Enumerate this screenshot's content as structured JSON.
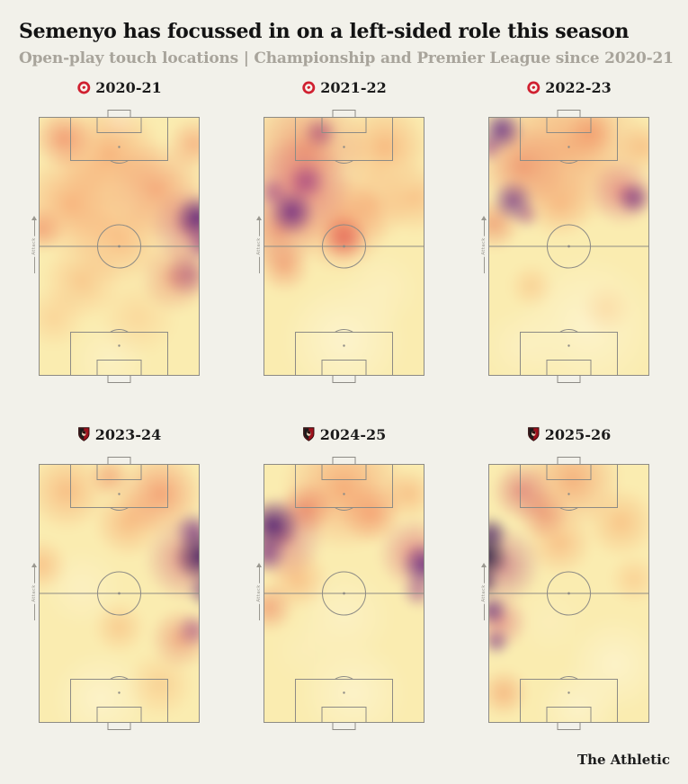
{
  "header": {
    "title": "Semenyo has focussed in on a left-sided role this season",
    "subtitle": "Open-play touch locations | Championship and Premier League since 2020-21"
  },
  "footer": {
    "brand": "The Athletic"
  },
  "pitch": {
    "attack_label": "Attack"
  },
  "colors": {
    "background": "#f2f1ea",
    "pitch_line": "#8d8b85",
    "title": "#131313",
    "subtitle": "#a8a49b",
    "heat_low": "#fdf5d3",
    "heat_mid": "#f08355",
    "heat_high": "#16093f",
    "bristol_city_red": "#d02030",
    "bournemouth_red": "#9e111c"
  },
  "icons": {
    "bristol_city_badge": "red circle crest with white robin",
    "afc_bournemouth_badge": "red and black shield crest with head profile"
  },
  "chart_data": {
    "type": "heatmap",
    "title": "Semenyo has focussed in on a left-sided role this season",
    "subtitle": "Open-play touch locations | Championship and Premier League since 2020-21",
    "player": "Semenyo",
    "orientation": "vertical pitch per panel, attacking direction up (arrow labelled Attack on left touchline)",
    "colormap": "reversed magma: pale yellow = few touches, orange/red = more, dark purple/black = most",
    "legend": "none shown",
    "grid": "2 rows x 3 columns of pitches",
    "panels": [
      {
        "season": "2020-21",
        "club": "Bristol City",
        "badge": "bristol-city",
        "peak_zones": [
          "right wing just above halfway line",
          "right half-space below halfway"
        ],
        "base": "#faecb0",
        "blobs": [
          {
            "x": 92,
            "y": 40,
            "r": 26,
            "c": "#4c1277",
            "a": 0.85
          },
          {
            "x": 95,
            "y": 49,
            "r": 20,
            "c": "#7c2382",
            "a": 0.6
          },
          {
            "x": 88,
            "y": 43,
            "r": 45,
            "c": "#c23b62",
            "a": 0.55
          },
          {
            "x": 87,
            "y": 60,
            "r": 26,
            "c": "#993073",
            "a": 0.5
          },
          {
            "x": 80,
            "y": 61,
            "r": 40,
            "c": "#df5a4e",
            "a": 0.45
          },
          {
            "x": 70,
            "y": 30,
            "r": 55,
            "c": "#ef7450",
            "a": 0.55
          },
          {
            "x": 20,
            "y": 12,
            "r": 34,
            "c": "#ed6d4f",
            "a": 0.6
          },
          {
            "x": 45,
            "y": 18,
            "r": 60,
            "c": "#f58f5b",
            "a": 0.6
          },
          {
            "x": 25,
            "y": 35,
            "r": 60,
            "c": "#f68f5c",
            "a": 0.6
          },
          {
            "x": 8,
            "y": 44,
            "r": 26,
            "c": "#ea6a4e",
            "a": 0.5
          },
          {
            "x": 50,
            "y": 47,
            "r": 55,
            "c": "#f79a63",
            "a": 0.55
          },
          {
            "x": 90,
            "y": 14,
            "r": 30,
            "c": "#f2815a",
            "a": 0.5
          },
          {
            "x": 30,
            "y": 62,
            "r": 45,
            "c": "#f8a76c",
            "a": 0.5
          },
          {
            "x": 60,
            "y": 75,
            "r": 45,
            "c": "#f9c285",
            "a": 0.45
          },
          {
            "x": 15,
            "y": 75,
            "r": 35,
            "c": "#f9b97c",
            "a": 0.45
          },
          {
            "x": 50,
            "y": 6,
            "r": 22,
            "c": "#fdf4d0",
            "a": 0.8
          },
          {
            "x": 45,
            "y": 90,
            "r": 45,
            "c": "#fcf2c8",
            "a": 0.7
          }
        ]
      },
      {
        "season": "2021-22",
        "club": "Bristol City",
        "badge": "bristol-city",
        "peak_zones": [
          "left half-space above halfway",
          "left side of final third",
          "centre circle"
        ],
        "base": "#faecb0",
        "blobs": [
          {
            "x": 22,
            "y": 38,
            "r": 26,
            "c": "#5c167f",
            "a": 0.8
          },
          {
            "x": 30,
            "y": 27,
            "r": 22,
            "c": "#8c2981",
            "a": 0.6
          },
          {
            "x": 37,
            "y": 10,
            "r": 20,
            "c": "#993073",
            "a": 0.6
          },
          {
            "x": 12,
            "y": 31,
            "r": 18,
            "c": "#8c2981",
            "a": 0.5
          },
          {
            "x": 25,
            "y": 30,
            "r": 60,
            "c": "#cd4066",
            "a": 0.5
          },
          {
            "x": 30,
            "y": 16,
            "r": 70,
            "c": "#e4604b",
            "a": 0.55
          },
          {
            "x": 15,
            "y": 45,
            "r": 45,
            "c": "#e05a4a",
            "a": 0.5
          },
          {
            "x": 50,
            "y": 47,
            "r": 26,
            "c": "#df4b46",
            "a": 0.7
          },
          {
            "x": 48,
            "y": 42,
            "r": 55,
            "c": "#f07b53",
            "a": 0.55
          },
          {
            "x": 72,
            "y": 15,
            "r": 50,
            "c": "#f69a62",
            "a": 0.6
          },
          {
            "x": 88,
            "y": 33,
            "r": 40,
            "c": "#f79d64",
            "a": 0.5
          },
          {
            "x": 18,
            "y": 57,
            "r": 30,
            "c": "#ec7150",
            "a": 0.5
          },
          {
            "x": 65,
            "y": 35,
            "r": 45,
            "c": "#f5935e",
            "a": 0.45
          },
          {
            "x": 50,
            "y": 83,
            "r": 70,
            "c": "#fdf5d3",
            "a": 0.8
          },
          {
            "x": 70,
            "y": 65,
            "r": 45,
            "c": "#fcf1c6",
            "a": 0.6
          }
        ]
      },
      {
        "season": "2022-23",
        "club": "Bristol City",
        "badge": "bristol-city",
        "peak_zones": [
          "top-left corner of final third",
          "left wing above halfway",
          "right wing above halfway"
        ],
        "base": "#faecb0",
        "blobs": [
          {
            "x": 14,
            "y": 9,
            "r": 24,
            "c": "#531480",
            "a": 0.8
          },
          {
            "x": 7,
            "y": 15,
            "r": 18,
            "c": "#8c2981",
            "a": 0.55
          },
          {
            "x": 20,
            "y": 34,
            "r": 24,
            "c": "#5c167f",
            "a": 0.7
          },
          {
            "x": 27,
            "y": 39,
            "r": 16,
            "c": "#993073",
            "a": 0.5
          },
          {
            "x": 85,
            "y": 33,
            "r": 20,
            "c": "#6b1f7c",
            "a": 0.7
          },
          {
            "x": 79,
            "y": 31,
            "r": 38,
            "c": "#cd4066",
            "a": 0.5
          },
          {
            "x": 50,
            "y": 15,
            "r": 90,
            "c": "#f08355",
            "a": 0.55
          },
          {
            "x": 25,
            "y": 22,
            "r": 50,
            "c": "#e4604b",
            "a": 0.5
          },
          {
            "x": 10,
            "y": 42,
            "r": 30,
            "c": "#e66549",
            "a": 0.5
          },
          {
            "x": 62,
            "y": 10,
            "r": 28,
            "c": "#ee7752",
            "a": 0.5
          },
          {
            "x": 45,
            "y": 35,
            "r": 40,
            "c": "#f5935e",
            "a": 0.45
          },
          {
            "x": 90,
            "y": 15,
            "r": 30,
            "c": "#f7a267",
            "a": 0.5
          },
          {
            "x": 30,
            "y": 64,
            "r": 26,
            "c": "#f8b274",
            "a": 0.45
          },
          {
            "x": 70,
            "y": 72,
            "r": 30,
            "c": "#f9c285",
            "a": 0.4
          },
          {
            "x": 60,
            "y": 78,
            "r": 80,
            "c": "#fdf5d3",
            "a": 0.75
          },
          {
            "x": 25,
            "y": 85,
            "r": 45,
            "c": "#fcf2ca",
            "a": 0.6
          }
        ]
      },
      {
        "season": "2023-24",
        "club": "AFC Bournemouth",
        "badge": "afc-bournemouth",
        "peak_zones": [
          "right touchline just above halfway",
          "right wing below halfway"
        ],
        "base": "#faecb0",
        "blobs": [
          {
            "x": 94,
            "y": 37,
            "r": 30,
            "c": "#2d0a5c",
            "a": 0.85
          },
          {
            "x": 90,
            "y": 28,
            "r": 22,
            "c": "#61187f",
            "a": 0.65
          },
          {
            "x": 96,
            "y": 49,
            "r": 20,
            "c": "#4c1277",
            "a": 0.6
          },
          {
            "x": 86,
            "y": 38,
            "r": 48,
            "c": "#c23b62",
            "a": 0.5
          },
          {
            "x": 90,
            "y": 63,
            "r": 20,
            "c": "#8c2981",
            "a": 0.5
          },
          {
            "x": 83,
            "y": 66,
            "r": 35,
            "c": "#df5a4e",
            "a": 0.45
          },
          {
            "x": 72,
            "y": 15,
            "r": 48,
            "c": "#ef7450",
            "a": 0.6
          },
          {
            "x": 55,
            "y": 25,
            "r": 40,
            "c": "#f59059",
            "a": 0.5
          },
          {
            "x": 45,
            "y": 9,
            "r": 24,
            "c": "#ee7752",
            "a": 0.5
          },
          {
            "x": 22,
            "y": 14,
            "r": 45,
            "c": "#f69a62",
            "a": 0.55
          },
          {
            "x": 8,
            "y": 40,
            "r": 30,
            "c": "#f79d64",
            "a": 0.5
          },
          {
            "x": 50,
            "y": 62,
            "r": 30,
            "c": "#f7a668",
            "a": 0.45
          },
          {
            "x": 72,
            "y": 82,
            "r": 38,
            "c": "#f8b274",
            "a": 0.45
          },
          {
            "x": 30,
            "y": 48,
            "r": 45,
            "c": "#fcf2ca",
            "a": 0.65
          },
          {
            "x": 40,
            "y": 87,
            "r": 55,
            "c": "#fdf5d3",
            "a": 0.7
          }
        ]
      },
      {
        "season": "2024-25",
        "club": "AFC Bournemouth",
        "badge": "afc-bournemouth",
        "peak_zones": [
          "left wing in final third",
          "right wing just above halfway"
        ],
        "base": "#faecb0",
        "blobs": [
          {
            "x": 12,
            "y": 26,
            "r": 30,
            "c": "#3f0e6e",
            "a": 0.85
          },
          {
            "x": 9,
            "y": 36,
            "r": 22,
            "c": "#61187f",
            "a": 0.65
          },
          {
            "x": 17,
            "y": 30,
            "r": 48,
            "c": "#c23b62",
            "a": 0.5
          },
          {
            "x": 93,
            "y": 40,
            "r": 26,
            "c": "#531480",
            "a": 0.8
          },
          {
            "x": 90,
            "y": 49,
            "r": 20,
            "c": "#8c2981",
            "a": 0.55
          },
          {
            "x": 88,
            "y": 36,
            "r": 42,
            "c": "#cd4066",
            "a": 0.5
          },
          {
            "x": 30,
            "y": 20,
            "r": 30,
            "c": "#e4604b",
            "a": 0.55
          },
          {
            "x": 50,
            "y": 13,
            "r": 70,
            "c": "#f28455",
            "a": 0.6
          },
          {
            "x": 65,
            "y": 22,
            "r": 35,
            "c": "#ef7450",
            "a": 0.5
          },
          {
            "x": 10,
            "y": 55,
            "r": 28,
            "c": "#e96a4e",
            "a": 0.5
          },
          {
            "x": 85,
            "y": 15,
            "r": 30,
            "c": "#f69a62",
            "a": 0.5
          },
          {
            "x": 25,
            "y": 45,
            "r": 35,
            "c": "#f59059",
            "a": 0.45
          },
          {
            "x": 50,
            "y": 58,
            "r": 55,
            "c": "#fcf2ca",
            "a": 0.7
          },
          {
            "x": 55,
            "y": 85,
            "r": 60,
            "c": "#fdf5d3",
            "a": 0.7
          },
          {
            "x": 30,
            "y": 70,
            "r": 40,
            "c": "#fbefc0",
            "a": 0.5
          }
        ]
      },
      {
        "season": "2025-26",
        "club": "AFC Bournemouth",
        "badge": "afc-bournemouth",
        "peak_zones": [
          "left touchline just above halfway (most intense of all seasons)",
          "left touchline below halfway"
        ],
        "base": "#faecb0",
        "blobs": [
          {
            "x": 5,
            "y": 37,
            "r": 26,
            "c": "#120a38",
            "a": 0.9
          },
          {
            "x": 8,
            "y": 29,
            "r": 20,
            "c": "#330b60",
            "a": 0.75
          },
          {
            "x": 4,
            "y": 46,
            "r": 18,
            "c": "#27094f",
            "a": 0.7
          },
          {
            "x": 9,
            "y": 56,
            "r": 18,
            "c": "#4c1277",
            "a": 0.65
          },
          {
            "x": 11,
            "y": 67,
            "r": 16,
            "c": "#61187f",
            "a": 0.55
          },
          {
            "x": 14,
            "y": 40,
            "r": 45,
            "c": "#a8326c",
            "a": 0.5
          },
          {
            "x": 13,
            "y": 60,
            "r": 32,
            "c": "#cd4066",
            "a": 0.45
          },
          {
            "x": 25,
            "y": 14,
            "r": 34,
            "c": "#cf4455",
            "a": 0.55
          },
          {
            "x": 36,
            "y": 22,
            "r": 30,
            "c": "#e05a4a",
            "a": 0.5
          },
          {
            "x": 52,
            "y": 10,
            "r": 55,
            "c": "#f08355",
            "a": 0.55
          },
          {
            "x": 45,
            "y": 32,
            "r": 38,
            "c": "#f59059",
            "a": 0.45
          },
          {
            "x": 78,
            "y": 25,
            "r": 40,
            "c": "#f7a062",
            "a": 0.5
          },
          {
            "x": 85,
            "y": 45,
            "r": 28,
            "c": "#f8ab6c",
            "a": 0.4
          },
          {
            "x": 15,
            "y": 85,
            "r": 28,
            "c": "#f18a58",
            "a": 0.5
          },
          {
            "x": 40,
            "y": 60,
            "r": 40,
            "c": "#fbefc0",
            "a": 0.55
          },
          {
            "x": 75,
            "y": 75,
            "r": 55,
            "c": "#fdf5d3",
            "a": 0.7
          },
          {
            "x": 55,
            "y": 90,
            "r": 45,
            "c": "#fdf6d8",
            "a": 0.6
          }
        ]
      }
    ]
  }
}
